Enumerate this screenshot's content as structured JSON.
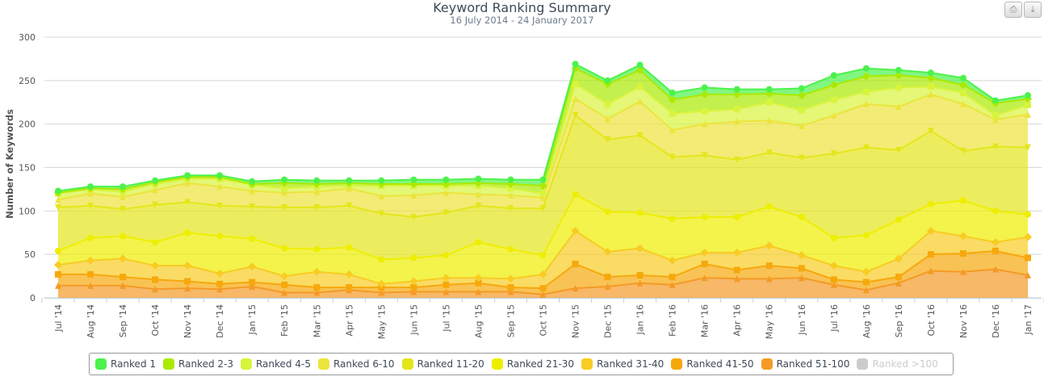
{
  "header": {
    "title": "Keyword Ranking Summary",
    "subtitle": "16 July 2014 - 24 January 2017",
    "print_icon": "printer-icon",
    "download_icon": "download-icon"
  },
  "chart_data": {
    "type": "area",
    "stacked": true,
    "title": "Keyword Ranking Summary",
    "subtitle": "16 July 2014 - 24 January 2017",
    "xlabel": "",
    "ylabel": "Number of Keywords",
    "ylim": [
      0,
      300
    ],
    "yticks": [
      "0",
      "50",
      "100",
      "150",
      "200",
      "250",
      "300"
    ],
    "grid": true,
    "legend_position": "bottom",
    "categories": [
      "Jul '14",
      "Aug '14",
      "Sep '14",
      "Oct '14",
      "Nov '14",
      "Dec '14",
      "Jan '15",
      "Feb '15",
      "Mar '15",
      "Apr '15",
      "May '15",
      "Jun '15",
      "Jul '15",
      "Aug '15",
      "Sep '15",
      "Oct '15",
      "Nov '15",
      "Dec '15",
      "Jan '16",
      "Feb '16",
      "Mar '16",
      "Apr '16",
      "May '16",
      "Jun '16",
      "Jul '16",
      "Aug '16",
      "Sep '16",
      "Oct '16",
      "Nov '16",
      "Dec '16",
      "Jan '17"
    ],
    "series": [
      {
        "name": "Ranked 1",
        "color": "#4cf24c",
        "marker": "circle",
        "values": [
          2,
          2,
          3,
          2,
          2,
          2,
          3,
          4,
          4,
          3,
          4,
          5,
          5,
          5,
          5,
          7,
          5,
          4,
          6,
          8,
          8,
          6,
          5,
          8,
          11,
          9,
          6,
          6,
          8,
          3,
          4
        ]
      },
      {
        "name": "Ranked 2-3",
        "color": "#aaea00",
        "marker": "diamond",
        "values": [
          1,
          1,
          3,
          2,
          2,
          2,
          1,
          6,
          3,
          3,
          2,
          2,
          2,
          3,
          5,
          9,
          18,
          23,
          19,
          16,
          19,
          17,
          10,
          17,
          17,
          18,
          14,
          10,
          9,
          14,
          7
        ]
      },
      {
        "name": "Ranked 4-5",
        "color": "#d8f43c",
        "marker": "square",
        "values": [
          7,
          5,
          6,
          7,
          5,
          9,
          7,
          5,
          6,
          3,
          12,
          11,
          8,
          10,
          8,
          5,
          17,
          17,
          17,
          19,
          15,
          14,
          21,
          18,
          18,
          14,
          22,
          9,
          13,
          5,
          11
        ]
      },
      {
        "name": "Ranked 6-10",
        "color": "#ece43c",
        "marker": "triangle",
        "values": [
          9,
          14,
          14,
          17,
          22,
          22,
          18,
          17,
          18,
          20,
          20,
          25,
          23,
          13,
          15,
          12,
          19,
          24,
          39,
          31,
          36,
          44,
          37,
          37,
          44,
          50,
          50,
          42,
          54,
          31,
          38
        ]
      },
      {
        "name": "Ranked 11-20",
        "color": "#e4e61a",
        "marker": "triangle-down",
        "values": [
          50,
          37,
          31,
          43,
          35,
          35,
          37,
          47,
          48,
          48,
          53,
          47,
          49,
          42,
          47,
          54,
          91,
          83,
          89,
          71,
          71,
          66,
          62,
          68,
          97,
          101,
          80,
          84,
          57,
          74,
          77
        ]
      },
      {
        "name": "Ranked 21-30",
        "color": "#eeee00",
        "marker": "circle",
        "values": [
          16,
          26,
          26,
          27,
          38,
          43,
          32,
          32,
          26,
          31,
          28,
          27,
          26,
          41,
          34,
          22,
          42,
          46,
          41,
          48,
          41,
          41,
          45,
          44,
          32,
          42,
          45,
          31,
          41,
          36,
          26
        ]
      },
      {
        "name": "Ranked 31-40",
        "color": "#f8cc22",
        "marker": "diamond",
        "values": [
          11,
          16,
          21,
          16,
          18,
          12,
          18,
          10,
          18,
          15,
          4,
          7,
          8,
          6,
          10,
          16,
          38,
          29,
          31,
          19,
          13,
          20,
          23,
          15,
          16,
          12,
          21,
          27,
          20,
          10,
          24
        ]
      },
      {
        "name": "Ranked 41-50",
        "color": "#f6a80c",
        "marker": "square",
        "values": [
          13,
          13,
          10,
          11,
          8,
          6,
          5,
          9,
          6,
          3,
          6,
          5,
          8,
          10,
          5,
          7,
          28,
          11,
          9,
          9,
          16,
          10,
          15,
          11,
          6,
          9,
          7,
          19,
          21,
          21,
          20
        ]
      },
      {
        "name": "Ranked 51-100",
        "color": "#f49a26",
        "marker": "triangle",
        "values": [
          14,
          14,
          14,
          10,
          11,
          10,
          13,
          6,
          6,
          9,
          6,
          7,
          7,
          7,
          7,
          4,
          11,
          13,
          17,
          15,
          23,
          22,
          22,
          23,
          15,
          9,
          17,
          31,
          30,
          33,
          26
        ]
      },
      {
        "name": "Ranked >100",
        "color": "#cccccc",
        "visible": false
      }
    ]
  }
}
